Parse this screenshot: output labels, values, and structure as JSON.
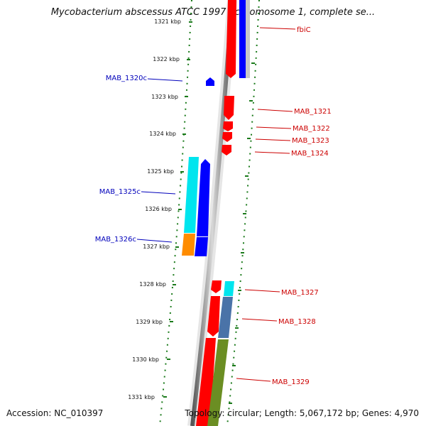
{
  "title": "Mycobacterium abscessus ATCC 19977 chromosome 1, complete se...",
  "footer": {
    "accession": "Accession: NC_010397",
    "stats": "Topology: circular; Length: 5,067,172 bp; Genes: 4,970"
  },
  "colors": {
    "forward_gene": "#ff0000",
    "reverse_gene": "#0000ff",
    "forward_label": "#cc0000",
    "reverse_label": "#0000bb",
    "backbone": "#888888",
    "tick_mark": "#1a7a1a"
  },
  "ticks": [
    "1321 kbp",
    "1322 kbp",
    "1323 kbp",
    "1324 kbp",
    "1325 kbp",
    "1326 kbp",
    "1327 kbp",
    "1328 kbp",
    "1329 kbp",
    "1330 kbp",
    "1331 kbp"
  ],
  "genes": [
    {
      "label": "fbiC",
      "strand": "forward"
    },
    {
      "label": "MAB_1320c",
      "strand": "reverse"
    },
    {
      "label": "MAB_1321",
      "strand": "forward"
    },
    {
      "label": "MAB_1322",
      "strand": "forward"
    },
    {
      "label": "MAB_1323",
      "strand": "forward"
    },
    {
      "label": "MAB_1324",
      "strand": "forward"
    },
    {
      "label": "MAB_1325c",
      "strand": "reverse"
    },
    {
      "label": "MAB_1326c",
      "strand": "reverse"
    },
    {
      "label": "MAB_1327",
      "strand": "forward"
    },
    {
      "label": "MAB_1328",
      "strand": "forward"
    },
    {
      "label": "MAB_1329",
      "strand": "forward"
    }
  ]
}
